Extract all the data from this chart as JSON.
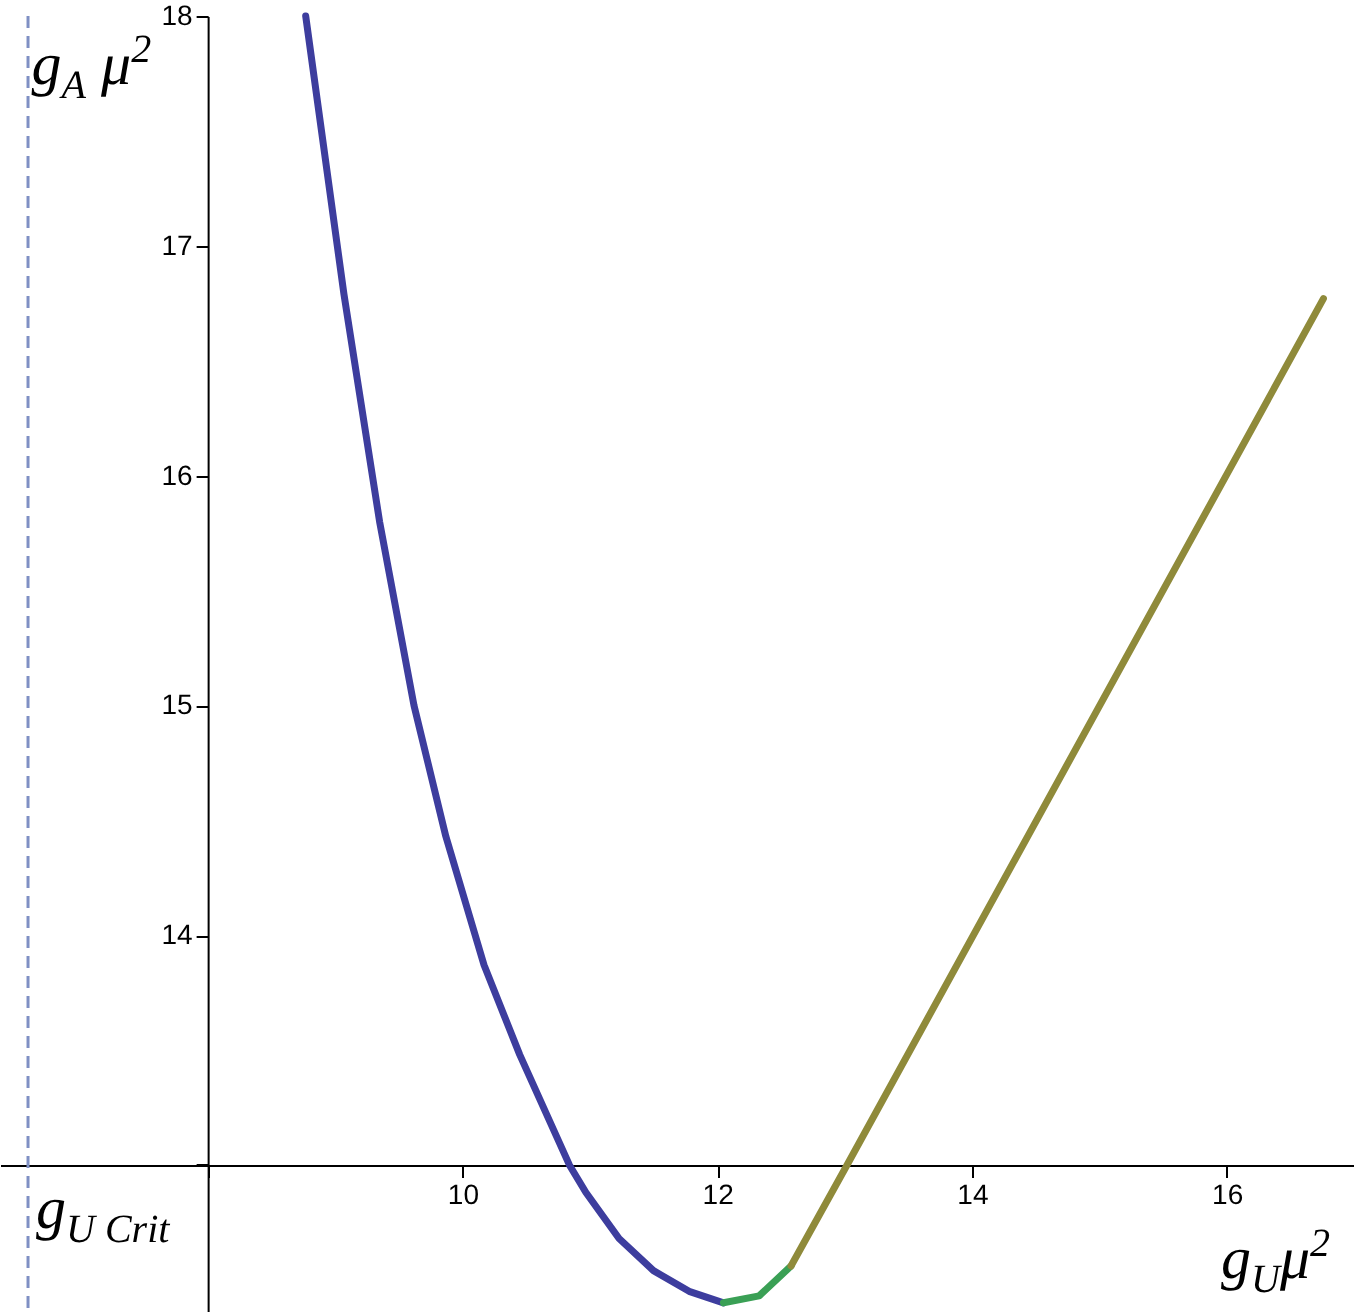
{
  "chart_data": {
    "type": "line",
    "xlabel": "g$_{U}$μ$^{2}$",
    "ylabel": "g$_{A}$ μ$^{2}$",
    "xlim": [
      6.37,
      17
    ],
    "ylim": [
      12.36,
      18
    ],
    "xticks": [
      {
        "value": 8,
        "label": null
      },
      10,
      12,
      14,
      16
    ],
    "yticks": [
      {
        "value": 13,
        "label": null
      },
      14,
      15,
      16,
      17,
      18
    ],
    "grid": false,
    "line_style": "solid",
    "marker": "none",
    "ref_lines": [
      {
        "axis": "x",
        "value": 6.59,
        "label": "g$_{U Crit}$",
        "color": "#7f90c4",
        "line_style": "dashed"
      }
    ],
    "series": [
      {
        "color": "#3d3d9e",
        "x": [
          8.77,
          9.07,
          9.35,
          9.62,
          9.87,
          10.17,
          10.45,
          10.84,
          10.97,
          11.23,
          11.5,
          11.78,
          12.05
        ],
        "values": [
          18.0,
          16.79,
          15.8,
          15.0,
          14.43,
          13.87,
          13.48,
          13.0,
          12.88,
          12.68,
          12.54,
          12.45,
          12.4
        ]
      },
      {
        "color": "#3aa055",
        "x": [
          12.05,
          12.33,
          12.58
        ],
        "values": [
          12.4,
          12.43,
          12.56
        ]
      },
      {
        "color": "#8f8a3a",
        "x": [
          12.58,
          13.02,
          16.76
        ],
        "values": [
          12.56,
          13.0,
          16.77
        ]
      }
    ]
  }
}
